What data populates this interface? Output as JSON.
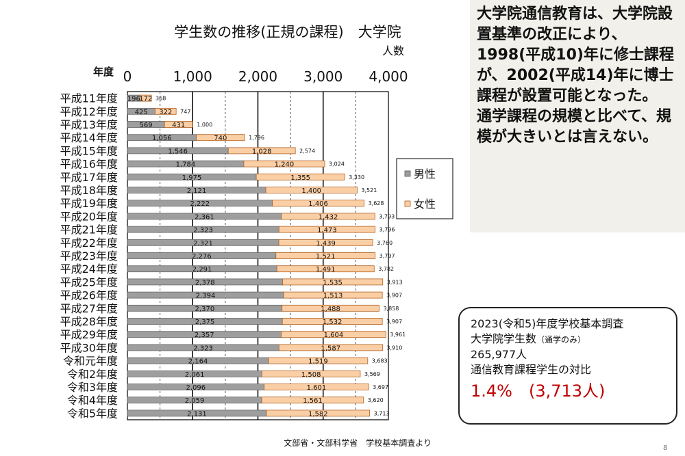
{
  "chart_data": {
    "type": "bar",
    "orientation": "horizontal",
    "stacked": true,
    "title": "学生数の推移(正規の課程)　大学院",
    "value_axis_label": "人数",
    "category_axis_label": "年度",
    "xlim": [
      0,
      4000
    ],
    "x_ticks": [
      0,
      1000,
      2000,
      3000,
      4000
    ],
    "x_tick_labels": [
      "0",
      "1,000",
      "2,000",
      "3,000",
      "4,000"
    ],
    "grid": true,
    "legend_position": "right",
    "categories": [
      "平成11年度",
      "平成12年度",
      "平成13年度",
      "平成14年度",
      "平成15年度",
      "平成16年度",
      "平成17年度",
      "平成18年度",
      "平成19年度",
      "平成20年度",
      "平成21年度",
      "平成22年度",
      "平成23年度",
      "平成24年度",
      "平成25年度",
      "平成26年度",
      "平成27年度",
      "平成28年度",
      "平成29年度",
      "平成30年度",
      "令和元年度",
      "令和2年度",
      "令和3年度",
      "令和4年度",
      "令和5年度"
    ],
    "series": [
      {
        "name": "男性",
        "color": "#9e9e9e",
        "values": [
          196,
          425,
          569,
          1056,
          1546,
          1784,
          1975,
          2121,
          2222,
          2361,
          2323,
          2321,
          2276,
          2291,
          2378,
          2394,
          2370,
          2375,
          2357,
          2323,
          2164,
          2061,
          2096,
          2059,
          2131
        ]
      },
      {
        "name": "女性",
        "color": "#fbcfa6",
        "values": [
          172,
          322,
          431,
          740,
          1028,
          1240,
          1355,
          1400,
          1406,
          1432,
          1473,
          1439,
          1521,
          1491,
          1535,
          1513,
          1488,
          1532,
          1604,
          1587,
          1519,
          1508,
          1601,
          1561,
          1582
        ]
      }
    ],
    "series_labels": {
      "male": [
        "196",
        "425",
        "569",
        "1,056",
        "1,546",
        "1,784",
        "1,975",
        "2,121",
        "2,222",
        "2,361",
        "2,323",
        "2,321",
        "2,276",
        "2,291",
        "2,378",
        "2,394",
        "2,370",
        "2,375",
        "2,357",
        "2,323",
        "2,164",
        "2,061",
        "2,096",
        "2,059",
        "2,131"
      ],
      "female": [
        "172",
        "322",
        "431",
        "740",
        "1,028",
        "1,240",
        "1,355",
        "1,400",
        "1,406",
        "1,432",
        "1,473",
        "1,439",
        "1,521",
        "1,491",
        "1,535",
        "1,513",
        "1,488",
        "1,532",
        "1,604",
        "1,587",
        "1,519",
        "1,508",
        "1,601",
        "1,561",
        "1,582"
      ]
    },
    "totals": [
      368,
      747,
      1000,
      1796,
      2574,
      3024,
      3330,
      3521,
      3628,
      3793,
      3796,
      3760,
      3797,
      3782,
      3913,
      3907,
      3858,
      3907,
      3961,
      3910,
      3683,
      3569,
      3697,
      3620,
      3713
    ],
    "total_labels": [
      "368",
      "747",
      "1,000",
      "1,796",
      "2,574",
      "3,024",
      "3,330",
      "3,521",
      "3,628",
      "3,793",
      "3,796",
      "3,760",
      "3,797",
      "3,782",
      "3,913",
      "3,907",
      "3,858",
      "3,907",
      "3,961",
      "3,910",
      "3,683",
      "3,569",
      "3,697",
      "3,620",
      "3,713"
    ],
    "source": "文部省・文部科学省　学校基本調査より"
  },
  "commentary": {
    "text": "大学院通信教育は、大学院設置基準の改正により、1998(平成10)年に修士課程が、2002(平成14)年に博士課程が設置可能となった。\n通学課程の規模と比べて、規模が大きいとは言えない。"
  },
  "stats": {
    "line1": "2023(令和5)年度学校基本調査",
    "line2_main": "大学院学生数",
    "line2_note": "（通学のみ）",
    "line3": "265,977人",
    "line4": "通信教育課程学生の対比",
    "highlight": "1.4%　(3,713人)"
  },
  "page_number": "8"
}
